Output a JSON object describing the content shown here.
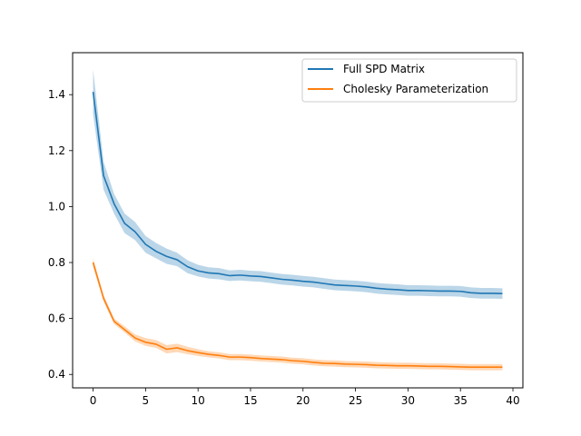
{
  "chart_data": {
    "type": "line",
    "title": "",
    "xlabel": "",
    "ylabel": "",
    "xlim": [
      -1.95,
      40.95
    ],
    "ylim": [
      0.352,
      1.55
    ],
    "xticks": [
      0,
      5,
      10,
      15,
      20,
      25,
      30,
      35,
      40
    ],
    "yticks": [
      0.4,
      0.6,
      0.8,
      1.0,
      1.2,
      1.4
    ],
    "xtick_labels": [
      "0",
      "5",
      "10",
      "15",
      "20",
      "25",
      "30",
      "35",
      "40"
    ],
    "ytick_labels": [
      "0.4",
      "0.6",
      "0.8",
      "1.0",
      "1.2",
      "1.4"
    ],
    "grid": false,
    "legend_position": "upper right",
    "x": [
      0,
      1,
      2,
      3,
      4,
      5,
      6,
      7,
      8,
      9,
      10,
      11,
      12,
      13,
      14,
      15,
      16,
      17,
      18,
      19,
      20,
      21,
      22,
      23,
      24,
      25,
      26,
      27,
      28,
      29,
      30,
      31,
      32,
      33,
      34,
      35,
      36,
      37,
      38,
      39
    ],
    "series": [
      {
        "name": "Full SPD Matrix",
        "color": "#1f77b4",
        "values": [
          1.41,
          1.11,
          1.01,
          0.94,
          0.91,
          0.865,
          0.84,
          0.822,
          0.81,
          0.785,
          0.77,
          0.763,
          0.76,
          0.753,
          0.755,
          0.752,
          0.75,
          0.745,
          0.74,
          0.737,
          0.733,
          0.73,
          0.725,
          0.72,
          0.718,
          0.716,
          0.713,
          0.708,
          0.705,
          0.703,
          0.7,
          0.7,
          0.699,
          0.698,
          0.698,
          0.697,
          0.692,
          0.69,
          0.69,
          0.689
        ],
        "lower": [
          1.33,
          1.06,
          0.975,
          0.905,
          0.88,
          0.835,
          0.815,
          0.795,
          0.787,
          0.762,
          0.75,
          0.743,
          0.74,
          0.734,
          0.736,
          0.733,
          0.731,
          0.726,
          0.721,
          0.718,
          0.714,
          0.711,
          0.706,
          0.701,
          0.699,
          0.697,
          0.694,
          0.689,
          0.686,
          0.684,
          0.681,
          0.681,
          0.68,
          0.679,
          0.679,
          0.678,
          0.673,
          0.671,
          0.671,
          0.67
        ],
        "upper": [
          1.49,
          1.16,
          1.045,
          0.975,
          0.945,
          0.895,
          0.87,
          0.85,
          0.835,
          0.808,
          0.792,
          0.783,
          0.78,
          0.772,
          0.774,
          0.771,
          0.769,
          0.764,
          0.759,
          0.756,
          0.752,
          0.749,
          0.744,
          0.739,
          0.737,
          0.735,
          0.732,
          0.727,
          0.724,
          0.722,
          0.719,
          0.719,
          0.718,
          0.717,
          0.717,
          0.716,
          0.711,
          0.709,
          0.709,
          0.708
        ]
      },
      {
        "name": "Cholesky Parameterization",
        "color": "#ff7f0e",
        "values": [
          0.8,
          0.672,
          0.59,
          0.56,
          0.53,
          0.515,
          0.508,
          0.49,
          0.495,
          0.485,
          0.478,
          0.472,
          0.468,
          0.462,
          0.462,
          0.46,
          0.457,
          0.455,
          0.453,
          0.449,
          0.447,
          0.443,
          0.44,
          0.439,
          0.437,
          0.436,
          0.435,
          0.433,
          0.432,
          0.431,
          0.431,
          0.43,
          0.429,
          0.429,
          0.428,
          0.427,
          0.426,
          0.426,
          0.426,
          0.426
        ],
        "lower": [
          0.785,
          0.66,
          0.58,
          0.55,
          0.518,
          0.502,
          0.495,
          0.475,
          0.48,
          0.472,
          0.466,
          0.461,
          0.457,
          0.451,
          0.451,
          0.449,
          0.446,
          0.444,
          0.442,
          0.438,
          0.436,
          0.432,
          0.429,
          0.428,
          0.426,
          0.425,
          0.424,
          0.422,
          0.421,
          0.42,
          0.42,
          0.419,
          0.418,
          0.418,
          0.417,
          0.416,
          0.415,
          0.415,
          0.415,
          0.415
        ],
        "upper": [
          0.815,
          0.684,
          0.6,
          0.572,
          0.543,
          0.53,
          0.523,
          0.505,
          0.51,
          0.499,
          0.49,
          0.483,
          0.479,
          0.473,
          0.473,
          0.471,
          0.468,
          0.466,
          0.464,
          0.46,
          0.458,
          0.454,
          0.451,
          0.45,
          0.448,
          0.447,
          0.446,
          0.444,
          0.443,
          0.442,
          0.442,
          0.441,
          0.44,
          0.44,
          0.439,
          0.438,
          0.437,
          0.437,
          0.437,
          0.437
        ]
      }
    ]
  }
}
